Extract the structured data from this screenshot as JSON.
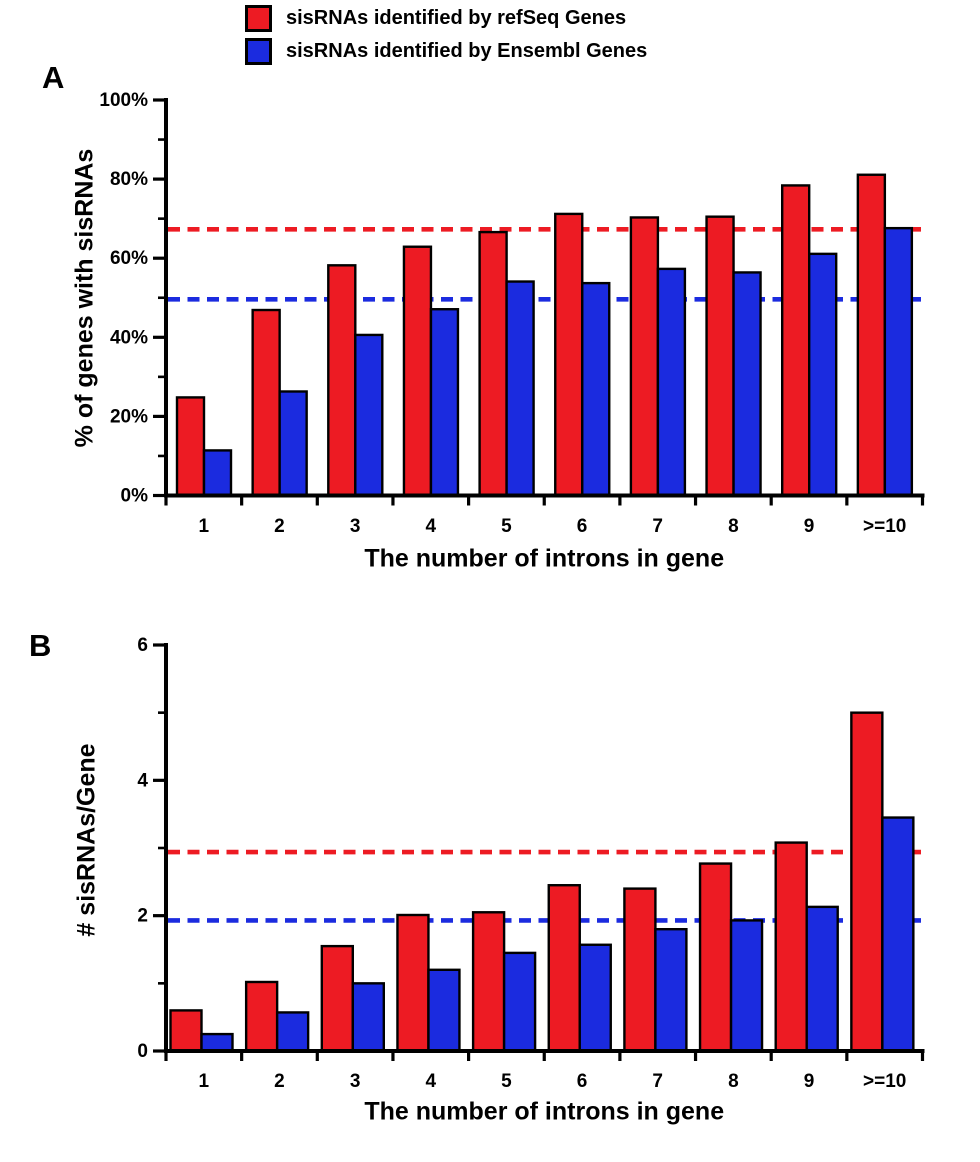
{
  "legend": {
    "items": [
      {
        "id": "refseq",
        "label": "sisRNAs identified by refSeq Genes",
        "color": "#ED1B23"
      },
      {
        "id": "ensembl",
        "label": "sisRNAs identified by Ensembl Genes",
        "color": "#1B2BDF"
      }
    ]
  },
  "chart_data": [
    {
      "type": "bar",
      "panel_label": "A",
      "xlabel": "The number of introns in gene",
      "ylabel": "% of genes with sisRNAs",
      "categories": [
        "1",
        "2",
        "3",
        "4",
        "5",
        "6",
        "7",
        "8",
        "9",
        ">=10"
      ],
      "series": [
        {
          "id": "refseq",
          "name": "sisRNAs identified by refSeq Genes",
          "color": "#ED1B23",
          "values": [
            24.8,
            46.9,
            58.2,
            62.9,
            66.6,
            71.2,
            70.3,
            70.5,
            78.4,
            81.1
          ]
        },
        {
          "id": "ensembl",
          "name": "sisRNAs identified by Ensembl Genes",
          "color": "#1B2BDF",
          "values": [
            11.4,
            26.3,
            40.6,
            47.1,
            54.1,
            53.7,
            57.3,
            56.4,
            61.1,
            67.6
          ]
        }
      ],
      "ylim": [
        0,
        100
      ],
      "yticks": {
        "values": [
          0,
          20,
          40,
          60,
          80,
          100
        ],
        "labels": [
          "0%",
          "20%",
          "40%",
          "60%",
          "80%",
          "100%"
        ],
        "minor": [
          10,
          30,
          50,
          70,
          90
        ]
      },
      "reference_lines": [
        {
          "id": "refseq-reference",
          "value": 67.3,
          "color": "#ED1B23",
          "style": "dashed"
        },
        {
          "id": "ensembl-reference",
          "value": 49.6,
          "color": "#1B2BDF",
          "style": "dashed"
        }
      ],
      "grid": false,
      "legend_position": "top"
    },
    {
      "type": "bar",
      "panel_label": "B",
      "xlabel": "The number of introns in gene",
      "ylabel": "# sisRNAs/Gene",
      "categories": [
        "1",
        "2",
        "3",
        "4",
        "5",
        "6",
        "7",
        "8",
        "9",
        ">=10"
      ],
      "series": [
        {
          "id": "refseq",
          "name": "sisRNAs identified by refSeq Genes",
          "color": "#ED1B23",
          "values": [
            0.6,
            1.02,
            1.55,
            2.01,
            2.05,
            2.45,
            2.4,
            2.77,
            3.08,
            5.0
          ]
        },
        {
          "id": "ensembl",
          "name": "sisRNAs identified by Ensembl Genes",
          "color": "#1B2BDF",
          "values": [
            0.25,
            0.57,
            1.0,
            1.2,
            1.45,
            1.57,
            1.8,
            1.93,
            2.13,
            3.45
          ]
        }
      ],
      "ylim": [
        0,
        6
      ],
      "yticks": {
        "values": [
          0,
          2,
          4,
          6
        ],
        "labels": [
          "0",
          "2",
          "4",
          "6"
        ],
        "minor": [
          1,
          3,
          5
        ]
      },
      "reference_lines": [
        {
          "id": "refseq-reference",
          "value": 2.94,
          "color": "#ED1B23",
          "style": "dashed"
        },
        {
          "id": "ensembl-reference",
          "value": 1.93,
          "color": "#1B2BDF",
          "style": "dashed"
        }
      ],
      "grid": false,
      "legend_position": "top"
    }
  ]
}
